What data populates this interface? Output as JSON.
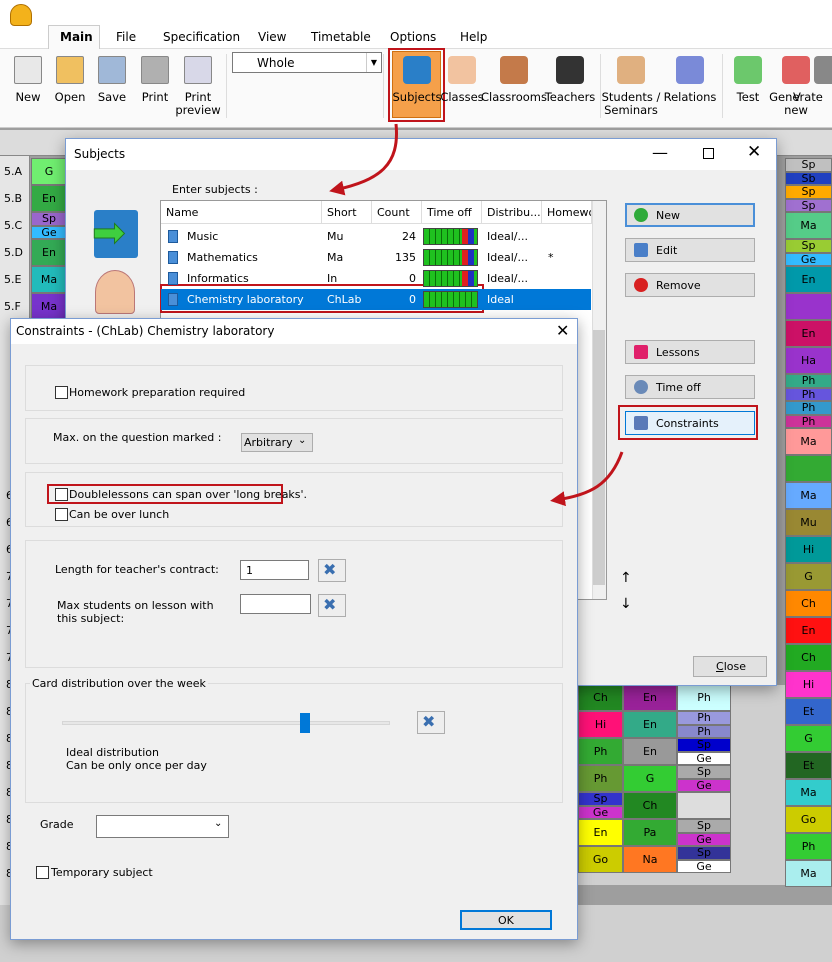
{
  "app": {
    "tabs": [
      "Main",
      "File",
      "Specification",
      "View",
      "Timetable",
      "Options",
      "Help"
    ],
    "toolbar": [
      "New",
      "Open",
      "Save",
      "Print",
      "Print preview"
    ],
    "view_select": "Whole",
    "modules": [
      "Subjects",
      "Classes",
      "Classrooms",
      "Teachers",
      "Students / Seminars",
      "Relations",
      "Test",
      "Generate new",
      "V"
    ]
  },
  "timetable": {
    "class_rows": [
      "5.A",
      "5.B",
      "5.C",
      "5.D",
      "5.E",
      "5.F"
    ],
    "lower_row_labels": [
      "6",
      "6",
      "6",
      "7",
      "7",
      "7",
      "7",
      "8",
      "8",
      "8",
      "8",
      "8",
      "8",
      "8",
      "8"
    ],
    "first_column": [
      [
        {
          "text": "G",
          "color": "#70ee70"
        }
      ],
      [
        {
          "text": "En",
          "color": "#33aa44"
        }
      ],
      [
        {
          "text": "Sp",
          "color": "#9966cc"
        },
        {
          "text": "Ge",
          "color": "#33bbff"
        }
      ],
      [
        {
          "text": "En",
          "color": "#33aa55"
        }
      ],
      [
        {
          "text": "Ma",
          "color": "#22bbbb"
        }
      ],
      [
        {
          "text": "Ma",
          "color": "#7733cc"
        }
      ]
    ],
    "last_column": [
      [
        {
          "text": "Sp",
          "color": "#c0c0c0"
        },
        {
          "text": "Sb",
          "color": "#2040c0"
        }
      ],
      [
        {
          "text": "Sp",
          "color": "#ffaa00"
        },
        {
          "text": "Sp",
          "color": "#a070d0"
        }
      ],
      [
        {
          "text": "Ma",
          "color": "#55cc88"
        }
      ],
      [
        {
          "text": "Sp",
          "color": "#99cc33"
        },
        {
          "text": "Ge",
          "color": "#33bbff"
        }
      ],
      [
        {
          "text": "En",
          "color": "#0099aa"
        }
      ],
      [
        {
          "color": "#9933cc"
        }
      ],
      [
        {
          "text": "En",
          "color": "#cc1166"
        }
      ],
      [
        {
          "text": "Ha",
          "color": "#9933cc"
        }
      ],
      [
        {
          "text": "Ph",
          "color": "#33aa88"
        },
        {
          "text": "Ph",
          "color": "#6655dd"
        }
      ],
      [
        {
          "text": "Ph",
          "color": "#3399cc"
        },
        {
          "text": "Ph",
          "color": "#cc3399"
        }
      ],
      [
        {
          "text": "Ma",
          "color": "#ff9999"
        }
      ],
      [
        {
          "color": "#33aa33"
        }
      ],
      [
        {
          "text": "Ma",
          "color": "#66aaff"
        }
      ],
      [
        {
          "text": "Mu",
          "color": "#998833"
        }
      ],
      [
        {
          "text": "Hi",
          "color": "#009999"
        }
      ],
      [
        {
          "text": "G",
          "color": "#999933"
        }
      ],
      [
        {
          "text": "Ch",
          "color": "#ff8800"
        }
      ],
      [
        {
          "text": "En",
          "color": "#ff1111"
        }
      ],
      [
        {
          "text": "Ch",
          "color": "#22aa22"
        }
      ],
      [
        {
          "text": "Hi",
          "color": "#ff33cc"
        }
      ],
      [
        {
          "text": "Et",
          "color": "#3366cc"
        }
      ],
      [
        {
          "text": "G",
          "color": "#33cc33"
        }
      ],
      [
        {
          "text": "Et",
          "color": "#226622"
        }
      ],
      [
        {
          "text": "Ma",
          "color": "#33cccc"
        }
      ],
      [
        {
          "text": "Go",
          "color": "#cccc00"
        }
      ],
      [
        {
          "text": "Ph",
          "color": "#33cc33"
        }
      ],
      [
        {
          "text": "Ma",
          "color": "#aaeeee"
        }
      ]
    ],
    "lower_grid": [
      [
        [
          {
            "text": "Ch",
            "color": "#228822"
          }
        ],
        [
          {
            "text": "En",
            "color": "#992299"
          }
        ],
        [
          {
            "text": "Ph",
            "color": "#ccffff"
          }
        ]
      ],
      [
        [
          {
            "text": "Hi",
            "color": "#ff1177"
          }
        ],
        [
          {
            "text": "En",
            "color": "#33aa88"
          }
        ],
        [
          {
            "text": "Ph",
            "color": "#9999dd"
          },
          {
            "text": "Ph",
            "color": "#8888cc"
          }
        ]
      ],
      [
        [
          {
            "text": "Ph",
            "color": "#33aa33"
          }
        ],
        [
          {
            "text": "En",
            "color": "#999999"
          }
        ],
        [
          {
            "text": "Sp",
            "color": "#0000cc"
          },
          {
            "text": "Ge",
            "color": "#ffffff"
          }
        ]
      ],
      [
        [
          {
            "text": "Ph",
            "color": "#669933"
          }
        ],
        [
          {
            "text": "G",
            "color": "#33cc33"
          }
        ],
        [
          {
            "text": "Sp",
            "color": "#aaaaaa"
          },
          {
            "text": "Ge",
            "color": "#cc33cc"
          }
        ]
      ],
      [
        [
          {
            "text": "Sp",
            "color": "#3333cc"
          },
          {
            "text": "Ge",
            "color": "#cc33cc"
          }
        ],
        [
          {
            "text": "Ch",
            "color": "#228822"
          }
        ],
        [
          {
            "color": "#dddddd"
          }
        ]
      ],
      [
        [
          {
            "text": "En",
            "color": "#ffff00"
          }
        ],
        [
          {
            "text": "Pa",
            "color": "#33aa33"
          }
        ],
        [
          {
            "text": "Sp",
            "color": "#aaaaaa"
          },
          {
            "text": "Ge",
            "color": "#cc33cc"
          }
        ]
      ],
      [
        [
          {
            "text": "Go",
            "color": "#cccc00"
          }
        ],
        [
          {
            "text": "Na",
            "color": "#ff7722"
          }
        ],
        [
          {
            "text": "Sp",
            "color": "#333399"
          },
          {
            "text": "Ge",
            "color": "#ffffff"
          }
        ]
      ]
    ]
  },
  "subjects_dialog": {
    "title": "Subjects",
    "prompt": "Enter subjects :",
    "columns": [
      "Name",
      "Short",
      "Count",
      "Time off",
      "Distribu...",
      "Homewo"
    ],
    "rows": [
      {
        "name": "Music",
        "short": "Mu",
        "count": 24,
        "distribution": "Ideal/..."
      },
      {
        "name": "Mathematics",
        "short": "Ma",
        "count": 135,
        "distribution": "Ideal/...",
        "homework": "*"
      },
      {
        "name": "Informatics",
        "short": "In",
        "count": 0,
        "distribution": "Ideal/..."
      },
      {
        "name": "Chemistry laboratory",
        "short": "ChLab",
        "count": 0,
        "distribution": "Ideal"
      }
    ],
    "buttons": {
      "new": "New",
      "edit": "Edit",
      "remove": "Remove",
      "lessons": "Lessons",
      "time_off": "Time off",
      "constraints": "Constraints",
      "close": "Close"
    },
    "move_up": "↑",
    "move_down": "↓"
  },
  "constraints_dialog": {
    "title": "Constraints - (ChLab) Chemistry laboratory",
    "homework": "Homework preparation required",
    "max_question_label": "Max. on the question marked :",
    "max_question_value": "Arbitrary",
    "double_lessons": "Doublelessons can span over 'long breaks'.",
    "over_lunch": "Can be over lunch",
    "contract_label": "Length for teacher's contract:",
    "contract_value": "1",
    "max_students_label": "Max students on lesson with this subject:",
    "card_distribution": "Card distribution over the week",
    "distribution_name": "Ideal distribution",
    "distribution_note": "Can be only once per day",
    "grade_label": "Grade",
    "temporary": "Temporary subject",
    "ok": "OK"
  }
}
